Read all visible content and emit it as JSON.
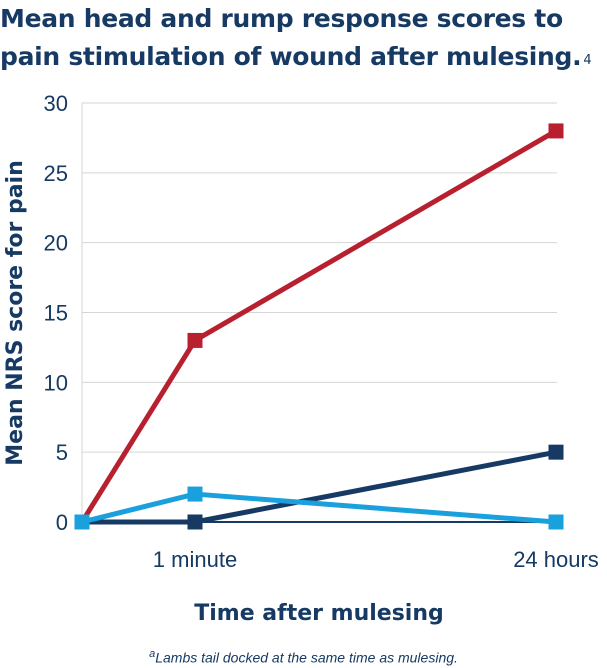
{
  "title": "Mean head and rump response scores to pain stimulation of wound after mulesing.",
  "title_footnote_ref": "4",
  "footnote_marker": "a",
  "footnote_text": "Lambs tail docked at the same time as mulesing.",
  "chart_data": {
    "type": "line",
    "title": "Mean head and rump response scores to pain stimulation of wound after mulesing.",
    "xlabel": "Time after mulesing",
    "ylabel": "Mean NRS score for pain",
    "categories": [
      "",
      "1 minute",
      "24 hours"
    ],
    "ylim": [
      0,
      30
    ],
    "yticks": [
      0,
      5,
      10,
      15,
      20,
      25,
      30
    ],
    "grid": true,
    "legend": "none",
    "series": [
      {
        "values": [
          0,
          13,
          28
        ],
        "color": "#b8202f"
      },
      {
        "values": [
          0,
          0,
          5
        ],
        "color": "#163a63"
      },
      {
        "values": [
          0,
          2,
          0
        ],
        "color": "#1aa0dc"
      }
    ]
  }
}
